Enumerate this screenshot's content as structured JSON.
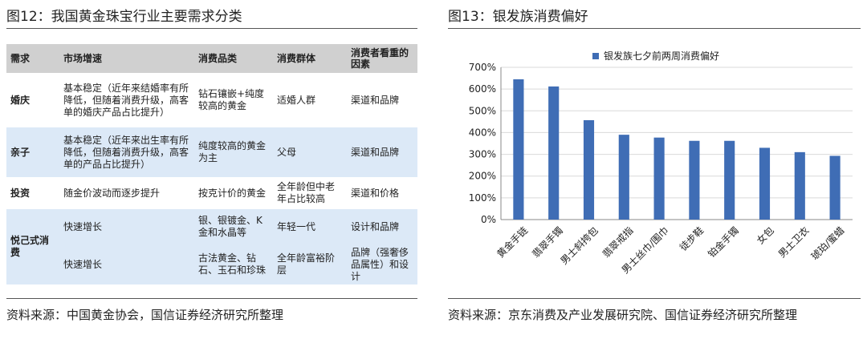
{
  "left": {
    "title": "图12：我国黄金珠宝行业主要需求分类",
    "source": "资料来源：中国黄金协会，国信证券经济研究所整理",
    "table": {
      "headers": [
        "需求",
        "市场增速",
        "消费品类",
        "消费群体",
        "消费者看重的因素"
      ],
      "rows": [
        {
          "cat": "婚庆",
          "growth": "基本稳定（近年来结婚率有所降低，但随着消费升级，高客单的婚庆产品占比提升）",
          "product": "钻石镶嵌+纯度较高的黄金",
          "group": "适婚人群",
          "factor": "渠道和品牌"
        },
        {
          "cat": "亲子",
          "growth": "基本稳定（近年来出生率有所降低，但随着消费升级，高客单的产品占比提升）",
          "product": "纯度较高的黄金为主",
          "group": "父母",
          "factor": "渠道和品牌"
        },
        {
          "cat": "投资",
          "growth": "随金价波动而逐步提升",
          "product": "按克计价的黄金",
          "group": "全年龄但中老年占比较高",
          "factor": "渠道和价格"
        },
        {
          "cat": "悦己式消费",
          "growth": "快速增长",
          "product": "银、银镀金、K金和水晶等",
          "group": "年轻一代",
          "factor": "设计和品牌"
        },
        {
          "growth": "快速增长",
          "product": "古法黄金、钻石、玉石和珍珠",
          "group": "全年龄富裕阶层",
          "factor": "品牌（强奢侈品属性）和设计"
        }
      ]
    }
  },
  "right": {
    "title": "图13：银发族消费偏好",
    "source": "资料来源：京东消费及产业发展研究院、国信证券经济研究所整理"
  },
  "chart_data": {
    "type": "bar",
    "categories": [
      "黄金手链",
      "翡翠手镯",
      "男士斜挎包",
      "翡翠戒指",
      "男士丝巾/围巾",
      "徒步鞋",
      "铂金手镯",
      "女包",
      "男士卫衣",
      "琥珀/蜜蜡"
    ],
    "series": [
      {
        "name": "银发族七夕前两周消费偏好",
        "values": [
          645,
          612,
          457,
          390,
          377,
          362,
          362,
          330,
          310,
          293
        ]
      }
    ],
    "yticks": [
      "0%",
      "100%",
      "200%",
      "300%",
      "400%",
      "500%",
      "600%",
      "700%"
    ],
    "ylim": [
      0,
      700
    ],
    "bar_color": "#3f6db5",
    "legend_position": "top"
  }
}
